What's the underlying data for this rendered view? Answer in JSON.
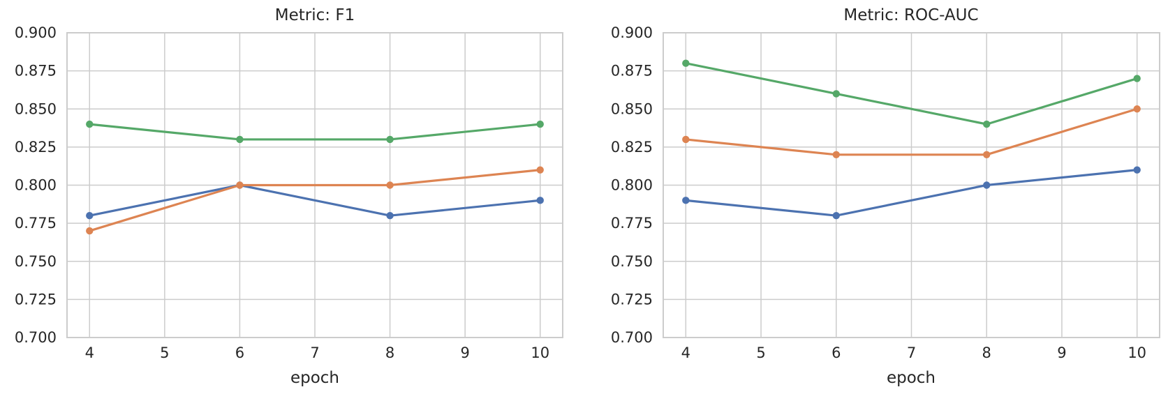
{
  "figure": {
    "background_color": "#ffffff",
    "grid_color": "#cccccc",
    "spine_color": "#cccccc",
    "text_color": "#262626"
  },
  "chart_data": [
    {
      "type": "line",
      "title": "Metric: F1",
      "xlabel": "epoch",
      "ylabel": "",
      "x": [
        4,
        6,
        8,
        10
      ],
      "xlim": [
        3.7,
        10.3
      ],
      "ylim": [
        0.7,
        0.9
      ],
      "xticks": [
        4,
        5,
        6,
        7,
        8,
        9,
        10
      ],
      "xtick_labels": [
        "4",
        "5",
        "6",
        "7",
        "8",
        "9",
        "10"
      ],
      "yticks": [
        0.7,
        0.725,
        0.75,
        0.775,
        0.8,
        0.825,
        0.85,
        0.875,
        0.9
      ],
      "ytick_labels": [
        "0.700",
        "0.725",
        "0.750",
        "0.775",
        "0.800",
        "0.825",
        "0.850",
        "0.875",
        "0.900"
      ],
      "grid": true,
      "legend": false,
      "marker": "circle",
      "series": [
        {
          "name": "blue",
          "color": "#4C72B0",
          "values": [
            0.78,
            0.8,
            0.78,
            0.79
          ]
        },
        {
          "name": "orange",
          "color": "#DD8452",
          "values": [
            0.77,
            0.8,
            0.8,
            0.81
          ]
        },
        {
          "name": "green",
          "color": "#55A868",
          "values": [
            0.84,
            0.83,
            0.83,
            0.84
          ]
        }
      ]
    },
    {
      "type": "line",
      "title": "Metric: ROC-AUC",
      "xlabel": "epoch",
      "ylabel": "",
      "x": [
        4,
        6,
        8,
        10
      ],
      "xlim": [
        3.7,
        10.3
      ],
      "ylim": [
        0.7,
        0.9
      ],
      "xticks": [
        4,
        5,
        6,
        7,
        8,
        9,
        10
      ],
      "xtick_labels": [
        "4",
        "5",
        "6",
        "7",
        "8",
        "9",
        "10"
      ],
      "yticks": [
        0.7,
        0.725,
        0.75,
        0.775,
        0.8,
        0.825,
        0.85,
        0.875,
        0.9
      ],
      "ytick_labels": [
        "0.700",
        "0.725",
        "0.750",
        "0.775",
        "0.800",
        "0.825",
        "0.850",
        "0.875",
        "0.900"
      ],
      "grid": true,
      "legend": false,
      "marker": "circle",
      "series": [
        {
          "name": "blue",
          "color": "#4C72B0",
          "values": [
            0.79,
            0.78,
            0.8,
            0.81
          ]
        },
        {
          "name": "orange",
          "color": "#DD8452",
          "values": [
            0.83,
            0.82,
            0.82,
            0.85
          ]
        },
        {
          "name": "green",
          "color": "#55A868",
          "values": [
            0.88,
            0.86,
            0.84,
            0.87
          ]
        }
      ]
    }
  ]
}
